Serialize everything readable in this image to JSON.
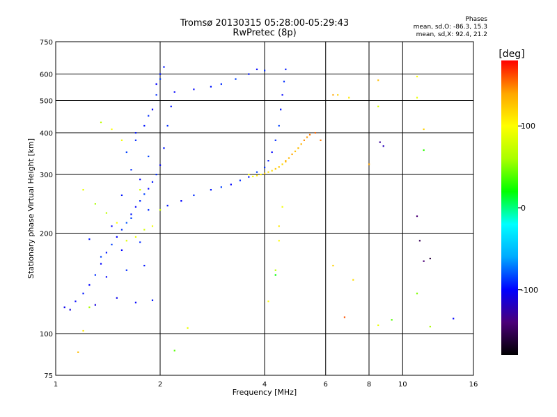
{
  "chart_data": {
    "type": "scatter",
    "title": "Tromsø 20130315 05:28:00-05:29:43",
    "subtitle": "RwPretec (8p)",
    "xlabel": "Frequency [MHz]",
    "ylabel": "Stationary phase Virtual Height [km]",
    "x_scale": "log",
    "y_scale": "log",
    "xlim": [
      1,
      16
    ],
    "ylim": [
      75,
      750
    ],
    "x_ticks": [
      1,
      2,
      4,
      6,
      8,
      10,
      16
    ],
    "y_ticks": [
      75,
      100,
      200,
      300,
      400,
      500,
      600,
      750
    ],
    "grid": true,
    "stats": {
      "heading": "Phases",
      "line_o": "mean, sd,O: -86.3, 15.3",
      "line_x": "mean, sd,X:  92.4, 21.2"
    },
    "colorbar": {
      "label": "[deg]",
      "ticks": [
        100,
        0,
        -100
      ],
      "range": [
        -180,
        180
      ],
      "colors": [
        "#000000",
        "#4b0078",
        "#0000ff",
        "#00aaff",
        "#00ffff",
        "#00ff00",
        "#aaff00",
        "#ffff00",
        "#ffa500",
        "#ff0000"
      ]
    },
    "series": [
      {
        "points": [
          [
            1.06,
            120,
            -105
          ],
          [
            1.1,
            118,
            -110
          ],
          [
            1.14,
            125,
            -100
          ],
          [
            1.2,
            132,
            -95
          ],
          [
            1.25,
            140,
            -100
          ],
          [
            1.3,
            150,
            -90
          ],
          [
            1.35,
            162,
            -100
          ],
          [
            1.4,
            175,
            -95
          ],
          [
            1.45,
            185,
            -85
          ],
          [
            1.5,
            195,
            -100
          ],
          [
            1.55,
            205,
            -90
          ],
          [
            1.6,
            215,
            -80
          ],
          [
            1.65,
            228,
            -95
          ],
          [
            1.7,
            240,
            -100
          ],
          [
            1.75,
            250,
            -90
          ],
          [
            1.8,
            262,
            -85
          ],
          [
            1.85,
            272,
            -100
          ],
          [
            1.9,
            285,
            -95
          ],
          [
            1.95,
            300,
            -90
          ],
          [
            2.0,
            320,
            -100
          ],
          [
            2.05,
            360,
            -95
          ],
          [
            2.1,
            420,
            -90
          ],
          [
            2.15,
            480,
            -95
          ],
          [
            2.2,
            530,
            -100
          ],
          [
            1.6,
            350,
            -85
          ],
          [
            1.7,
            380,
            -90
          ],
          [
            1.8,
            420,
            -95
          ],
          [
            1.9,
            470,
            -100
          ],
          [
            1.95,
            520,
            -90
          ],
          [
            2.0,
            580,
            -85
          ],
          [
            2.05,
            630,
            -95
          ],
          [
            2.1,
            242,
            -95
          ],
          [
            2.3,
            250,
            -100
          ],
          [
            2.5,
            260,
            -90
          ],
          [
            2.8,
            270,
            -95
          ],
          [
            3.0,
            275,
            -85
          ],
          [
            3.2,
            280,
            -100
          ],
          [
            3.4,
            288,
            -90
          ],
          [
            3.6,
            295,
            -95
          ],
          [
            3.8,
            305,
            -85
          ],
          [
            4.0,
            315,
            -90
          ],
          [
            4.1,
            330,
            -95
          ],
          [
            4.2,
            350,
            -100
          ],
          [
            4.3,
            380,
            -90
          ],
          [
            4.4,
            420,
            -85
          ],
          [
            4.45,
            470,
            -95
          ],
          [
            4.5,
            520,
            -100
          ],
          [
            4.55,
            570,
            -90
          ],
          [
            4.6,
            620,
            -95
          ],
          [
            2.5,
            540,
            -100
          ],
          [
            2.8,
            550,
            -95
          ],
          [
            3.0,
            560,
            -90
          ],
          [
            3.3,
            580,
            -85
          ],
          [
            3.6,
            600,
            -95
          ],
          [
            3.8,
            620,
            -100
          ],
          [
            4.0,
            615,
            -90
          ],
          [
            1.3,
            122,
            -110
          ],
          [
            1.5,
            128,
            -105
          ],
          [
            1.7,
            124,
            -100
          ],
          [
            1.9,
            126,
            -95
          ],
          [
            1.4,
            148,
            -100
          ],
          [
            1.6,
            155,
            -90
          ],
          [
            1.8,
            160,
            -95
          ],
          [
            1.35,
            170,
            -85
          ],
          [
            1.55,
            178,
            -100
          ],
          [
            1.75,
            188,
            -90
          ],
          [
            1.25,
            192,
            -95
          ],
          [
            1.45,
            210,
            -100
          ],
          [
            1.65,
            222,
            -85
          ],
          [
            1.85,
            235,
            -90
          ],
          [
            1.55,
            260,
            -95
          ],
          [
            1.75,
            290,
            -100
          ],
          [
            1.65,
            310,
            -90
          ],
          [
            1.85,
            340,
            -85
          ],
          [
            1.7,
            400,
            -95
          ],
          [
            1.85,
            450,
            -90
          ],
          [
            1.95,
            560,
            -100
          ],
          [
            2.0,
            600,
            -95
          ]
        ]
      },
      {
        "points": [
          [
            3.6,
            300,
            100
          ],
          [
            3.8,
            298,
            110
          ],
          [
            4.0,
            302,
            120
          ],
          [
            4.2,
            308,
            115
          ],
          [
            4.4,
            316,
            125
          ],
          [
            4.6,
            328,
            135
          ],
          [
            4.8,
            345,
            140
          ],
          [
            5.0,
            360,
            130
          ],
          [
            5.2,
            380,
            145
          ],
          [
            5.4,
            395,
            150
          ],
          [
            5.1,
            370,
            135
          ],
          [
            4.9,
            352,
            128
          ],
          [
            4.7,
            336,
            132
          ],
          [
            4.5,
            322,
            118
          ],
          [
            4.3,
            312,
            124
          ],
          [
            4.1,
            305,
            112
          ],
          [
            3.9,
            300,
            106
          ],
          [
            3.7,
            296,
            98
          ],
          [
            5.3,
            388,
            142
          ],
          [
            4.6,
            330,
            130
          ],
          [
            1.7,
            195,
            90
          ],
          [
            1.8,
            205,
            80
          ],
          [
            1.9,
            210,
            95
          ],
          [
            1.6,
            190,
            85
          ],
          [
            1.5,
            215,
            100
          ],
          [
            1.4,
            230,
            70
          ],
          [
            1.3,
            245,
            60
          ],
          [
            1.2,
            270,
            90
          ],
          [
            2.0,
            235,
            75
          ],
          [
            1.75,
            270,
            80
          ],
          [
            1.55,
            380,
            95
          ],
          [
            1.45,
            410,
            100
          ],
          [
            1.35,
            430,
            70
          ],
          [
            1.25,
            120,
            60
          ],
          [
            1.2,
            102,
            110
          ],
          [
            1.16,
            88,
            130
          ],
          [
            2.4,
            104,
            90
          ],
          [
            2.2,
            89,
            40
          ],
          [
            6.3,
            520,
            140
          ],
          [
            6.5,
            520,
            120
          ],
          [
            7.0,
            510,
            110
          ],
          [
            8.5,
            480,
            80
          ],
          [
            8.5,
            575,
            130
          ],
          [
            11.0,
            510,
            90
          ],
          [
            11.5,
            410,
            120
          ],
          [
            11.0,
            590,
            100
          ],
          [
            11.5,
            355,
            30
          ],
          [
            6.8,
            112,
            160
          ],
          [
            6.3,
            160,
            120
          ],
          [
            7.2,
            145,
            115
          ],
          [
            4.4,
            190,
            100
          ],
          [
            4.4,
            210,
            110
          ],
          [
            4.5,
            240,
            95
          ],
          [
            4.3,
            150,
            20
          ],
          [
            4.3,
            155,
            70
          ],
          [
            4.1,
            125,
            100
          ],
          [
            8.5,
            106,
            90
          ],
          [
            9.3,
            110,
            40
          ],
          [
            11.0,
            132,
            50
          ],
          [
            12.0,
            105,
            60
          ],
          [
            14.0,
            111,
            -100
          ],
          [
            8.8,
            365,
            -120
          ],
          [
            8.6,
            375,
            -130
          ],
          [
            8.0,
            322,
            140
          ],
          [
            11.0,
            225,
            -140
          ],
          [
            11.5,
            165,
            -140
          ],
          [
            11.2,
            190,
            -150
          ],
          [
            12.0,
            168,
            -160
          ],
          [
            5.8,
            380,
            150
          ],
          [
            5.6,
            400,
            155
          ]
        ]
      }
    ]
  }
}
